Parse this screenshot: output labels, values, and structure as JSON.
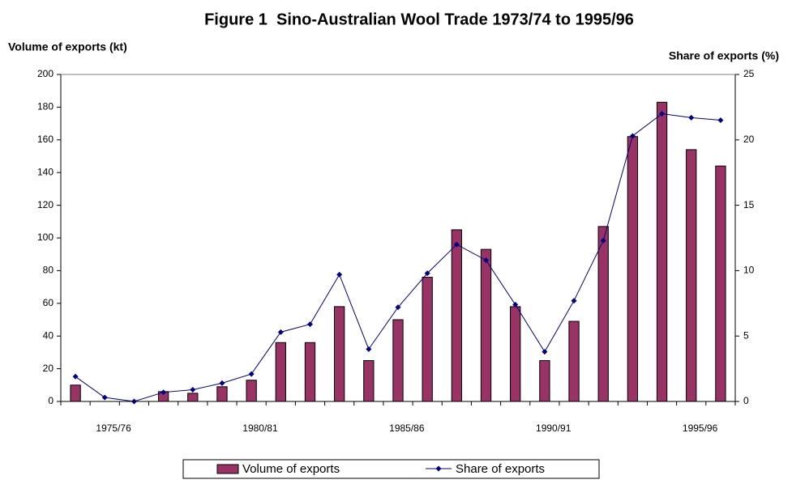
{
  "chart_data": {
    "type": "bar-line",
    "title": "Figure 1  Sino-Australian Wool Trade 1973/74 to 1995/96",
    "y_label": "Volume of exports (kt)",
    "y2_label": "Share of exports (%)",
    "categories": [
      null,
      null,
      "1975/76",
      null,
      null,
      null,
      null,
      "1980/81",
      null,
      null,
      null,
      null,
      "1985/86",
      null,
      null,
      null,
      null,
      "1990/91",
      null,
      null,
      null,
      null,
      "1995/96"
    ],
    "series": [
      {
        "name": "Volume of exports",
        "color": "#993366",
        "type": "bar",
        "values": [
          10,
          0,
          0,
          6,
          5,
          9,
          13,
          36,
          36,
          58,
          25,
          50,
          76,
          105,
          93,
          58,
          25,
          49,
          107,
          162,
          183,
          154,
          144
        ]
      },
      {
        "name": "Share of exports",
        "color": "#000080",
        "type": "line",
        "axis": "y2",
        "values": [
          1.9,
          0.3,
          0,
          0.7,
          0.9,
          1.4,
          2.1,
          5.3,
          5.9,
          9.7,
          4.0,
          7.2,
          9.8,
          12.0,
          10.8,
          7.4,
          3.8,
          7.7,
          12.3,
          20.3,
          22.0,
          21.7,
          21.5
        ]
      }
    ],
    "ylim": [
      0,
      200
    ],
    "yticks": [
      0,
      20,
      40,
      60,
      80,
      100,
      120,
      140,
      160,
      180,
      200
    ],
    "y2lim": [
      0,
      25
    ],
    "y2ticks": [
      0,
      5,
      10,
      15,
      20,
      25
    ],
    "legend": "bottom"
  }
}
